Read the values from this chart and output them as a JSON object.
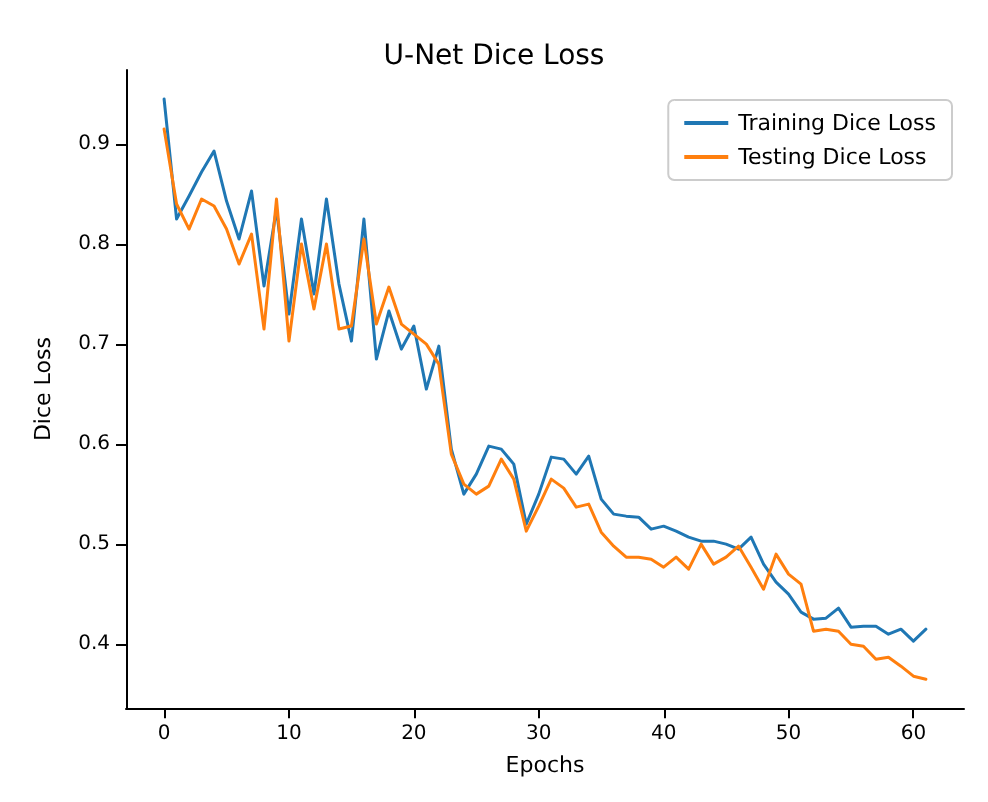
{
  "chart_data": {
    "type": "line",
    "title": "U-Net Dice Loss",
    "xlabel": "Epochs",
    "ylabel": "Dice Loss",
    "x": [
      0,
      1,
      2,
      3,
      4,
      5,
      6,
      7,
      8,
      9,
      10,
      11,
      12,
      13,
      14,
      15,
      16,
      17,
      18,
      19,
      20,
      21,
      22,
      23,
      24,
      25,
      26,
      27,
      28,
      29,
      30,
      31,
      32,
      33,
      34,
      35,
      36,
      37,
      38,
      39,
      40,
      41,
      42,
      43,
      44,
      45,
      46,
      47,
      48,
      49,
      50,
      51,
      52,
      53,
      54,
      55,
      56,
      57,
      58,
      59,
      60,
      61
    ],
    "series": [
      {
        "name": "Training Dice Loss",
        "color": "#1f77b4",
        "values": [
          0.945,
          0.825,
          0.848,
          0.872,
          0.893,
          0.843,
          0.805,
          0.853,
          0.758,
          0.835,
          0.73,
          0.825,
          0.75,
          0.845,
          0.76,
          0.703,
          0.825,
          0.685,
          0.733,
          0.695,
          0.718,
          0.655,
          0.698,
          0.595,
          0.55,
          0.57,
          0.598,
          0.595,
          0.58,
          0.52,
          0.55,
          0.587,
          0.585,
          0.57,
          0.588,
          0.545,
          0.53,
          0.528,
          0.527,
          0.515,
          0.518,
          0.513,
          0.507,
          0.503,
          0.503,
          0.5,
          0.495,
          0.507,
          0.48,
          0.462,
          0.45,
          0.432,
          0.425,
          0.426,
          0.436,
          0.417,
          0.418,
          0.418,
          0.41,
          0.415,
          0.403,
          0.415
        ]
      },
      {
        "name": "Testing Dice Loss",
        "color": "#ff7f0e",
        "values": [
          0.915,
          0.84,
          0.815,
          0.845,
          0.838,
          0.815,
          0.78,
          0.81,
          0.715,
          0.845,
          0.703,
          0.8,
          0.735,
          0.8,
          0.715,
          0.718,
          0.805,
          0.72,
          0.757,
          0.72,
          0.71,
          0.7,
          0.68,
          0.59,
          0.56,
          0.55,
          0.558,
          0.585,
          0.565,
          0.513,
          0.538,
          0.565,
          0.556,
          0.537,
          0.54,
          0.512,
          0.498,
          0.487,
          0.487,
          0.485,
          0.477,
          0.487,
          0.475,
          0.5,
          0.48,
          0.487,
          0.498,
          0.477,
          0.455,
          0.49,
          0.47,
          0.46,
          0.413,
          0.415,
          0.413,
          0.4,
          0.398,
          0.385,
          0.387,
          0.378,
          0.368,
          0.365
        ]
      }
    ],
    "xlim": [
      -3.05,
      64.05
    ],
    "ylim": [
      0.336,
      0.974
    ],
    "xticks": [
      0,
      10,
      20,
      30,
      40,
      50,
      60
    ],
    "yticks": [
      0.4,
      0.5,
      0.6,
      0.7,
      0.8,
      0.9
    ],
    "legend": "top right",
    "grid": false,
    "marker": "none",
    "line_style": "solid"
  }
}
